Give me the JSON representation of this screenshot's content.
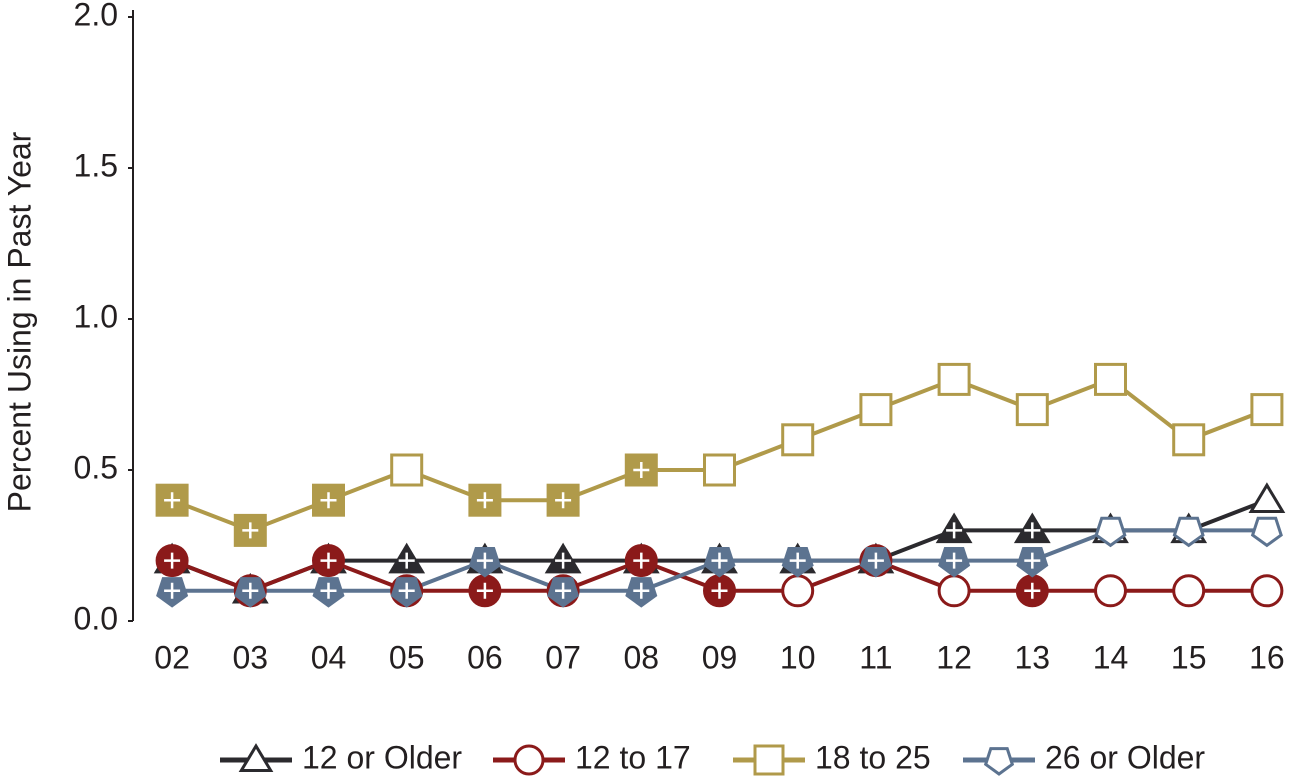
{
  "chart_data": {
    "type": "line",
    "y_label": "Percent Using in Past Year",
    "categories": [
      "02",
      "03",
      "04",
      "05",
      "06",
      "07",
      "08",
      "09",
      "10",
      "11",
      "12",
      "13",
      "14",
      "15",
      "16"
    ],
    "series": [
      {
        "name": "12 or Older",
        "color": "#2b2a2e",
        "marker": "triangle",
        "values": [
          0.2,
          0.1,
          0.2,
          0.2,
          0.2,
          0.2,
          0.2,
          0.2,
          0.2,
          0.2,
          0.3,
          0.3,
          0.3,
          0.3,
          0.4
        ],
        "filled": [
          true,
          true,
          true,
          true,
          true,
          true,
          true,
          true,
          true,
          true,
          true,
          true,
          false,
          false,
          false
        ]
      },
      {
        "name": "12 to 17",
        "color": "#8b1a1a",
        "marker": "circle",
        "values": [
          0.2,
          0.1,
          0.2,
          0.1,
          0.1,
          0.1,
          0.2,
          0.1,
          0.1,
          0.2,
          0.1,
          0.1,
          0.1,
          0.1,
          0.1
        ],
        "filled": [
          true,
          true,
          true,
          true,
          true,
          true,
          true,
          true,
          false,
          true,
          false,
          true,
          false,
          false,
          false
        ]
      },
      {
        "name": "18 to 25",
        "color": "#b09a4a",
        "marker": "square",
        "values": [
          0.4,
          0.3,
          0.4,
          0.5,
          0.4,
          0.4,
          0.5,
          0.5,
          0.6,
          0.7,
          0.8,
          0.7,
          0.8,
          0.6,
          0.7
        ],
        "filled": [
          true,
          true,
          true,
          false,
          true,
          true,
          true,
          false,
          false,
          false,
          false,
          false,
          false,
          false,
          false
        ]
      },
      {
        "name": "26 or Older",
        "color": "#5c7390",
        "marker": "pentagon",
        "values": [
          0.1,
          0.1,
          0.1,
          0.1,
          0.2,
          0.1,
          0.1,
          0.2,
          0.2,
          0.2,
          0.2,
          0.2,
          0.3,
          0.3,
          0.3
        ],
        "filled": [
          true,
          true,
          true,
          true,
          true,
          true,
          true,
          true,
          true,
          true,
          true,
          true,
          false,
          false,
          false
        ]
      }
    ],
    "ylim": [
      0,
      2
    ],
    "yticks": [
      {
        "value": 0,
        "label": "0.0"
      },
      {
        "value": 0.5,
        "label": "0.5"
      },
      {
        "value": 1,
        "label": "1.0"
      },
      {
        "value": 1.5,
        "label": "1.5"
      },
      {
        "value": 2,
        "label": "2.0"
      }
    ],
    "legend": "bottom"
  }
}
